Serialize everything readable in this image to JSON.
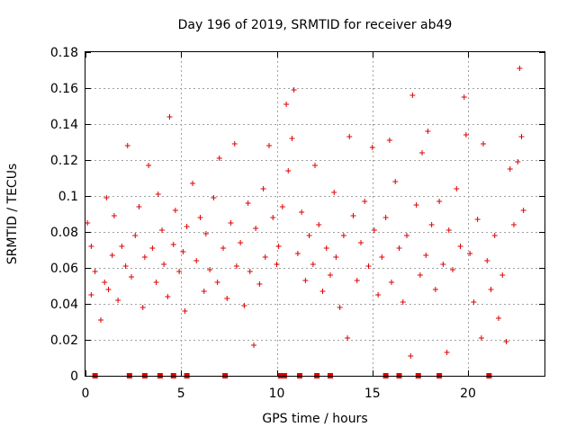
{
  "chart_data": {
    "type": "scatter",
    "title": "Day 196 of 2019, SRMTID for receiver ab49",
    "xlabel": "GPS time / hours",
    "ylabel": "SRMTID / TECUs",
    "xlim": [
      0,
      24
    ],
    "ylim": [
      0,
      0.18
    ],
    "grid": true,
    "marker": "+",
    "color": "#dd0000",
    "x_ticks": [
      0,
      5,
      10,
      15,
      20
    ],
    "x_tick_labels": [
      "0",
      "5",
      "10",
      "15",
      "20"
    ],
    "y_ticks": [
      0,
      0.02,
      0.04,
      0.06,
      0.08,
      0.1,
      0.12,
      0.14,
      0.16,
      0.18
    ],
    "y_tick_labels": [
      "0",
      "0.02",
      "0.04",
      "0.06",
      "0.08",
      "0.1",
      "0.12",
      "0.14",
      "0.16",
      "0.18"
    ],
    "series": [
      {
        "name": "SRMTID",
        "points": [
          [
            0.1,
            0.085
          ],
          [
            0.3,
            0.072
          ],
          [
            0.3,
            0.045
          ],
          [
            0.5,
            0.058
          ],
          [
            0.8,
            0.031
          ],
          [
            1.0,
            0.052
          ],
          [
            1.1,
            0.099
          ],
          [
            1.2,
            0.048
          ],
          [
            1.4,
            0.067
          ],
          [
            1.5,
            0.089
          ],
          [
            1.7,
            0.042
          ],
          [
            1.9,
            0.072
          ],
          [
            2.1,
            0.061
          ],
          [
            2.2,
            0.128
          ],
          [
            2.4,
            0.055
          ],
          [
            2.6,
            0.078
          ],
          [
            2.8,
            0.094
          ],
          [
            3.0,
            0.038
          ],
          [
            3.1,
            0.066
          ],
          [
            3.3,
            0.117
          ],
          [
            3.5,
            0.071
          ],
          [
            3.7,
            0.052
          ],
          [
            3.8,
            0.101
          ],
          [
            4.0,
            0.081
          ],
          [
            4.1,
            0.062
          ],
          [
            4.3,
            0.044
          ],
          [
            4.4,
            0.144
          ],
          [
            4.6,
            0.073
          ],
          [
            4.7,
            0.092
          ],
          [
            4.9,
            0.058
          ],
          [
            5.1,
            0.069
          ],
          [
            5.2,
            0.036
          ],
          [
            5.3,
            0.083
          ],
          [
            5.6,
            0.107
          ],
          [
            5.8,
            0.064
          ],
          [
            6.0,
            0.088
          ],
          [
            6.2,
            0.047
          ],
          [
            6.3,
            0.079
          ],
          [
            6.5,
            0.059
          ],
          [
            6.7,
            0.099
          ],
          [
            6.9,
            0.052
          ],
          [
            7.0,
            0.121
          ],
          [
            7.2,
            0.071
          ],
          [
            7.4,
            0.043
          ],
          [
            7.6,
            0.085
          ],
          [
            7.8,
            0.129
          ],
          [
            7.9,
            0.061
          ],
          [
            8.1,
            0.074
          ],
          [
            8.3,
            0.039
          ],
          [
            8.5,
            0.096
          ],
          [
            8.6,
            0.058
          ],
          [
            8.8,
            0.017
          ],
          [
            8.9,
            0.082
          ],
          [
            9.1,
            0.051
          ],
          [
            9.3,
            0.104
          ],
          [
            9.4,
            0.066
          ],
          [
            9.6,
            0.128
          ],
          [
            9.8,
            0.088
          ],
          [
            10.0,
            0.062
          ],
          [
            10.1,
            0.072
          ],
          [
            10.3,
            0.094
          ],
          [
            10.5,
            0.151
          ],
          [
            10.6,
            0.114
          ],
          [
            10.8,
            0.132
          ],
          [
            10.9,
            0.159
          ],
          [
            11.1,
            0.068
          ],
          [
            11.3,
            0.091
          ],
          [
            11.5,
            0.053
          ],
          [
            11.7,
            0.078
          ],
          [
            11.9,
            0.062
          ],
          [
            12.0,
            0.117
          ],
          [
            12.2,
            0.084
          ],
          [
            12.4,
            0.047
          ],
          [
            12.6,
            0.071
          ],
          [
            12.8,
            0.056
          ],
          [
            13.0,
            0.102
          ],
          [
            13.1,
            0.066
          ],
          [
            13.3,
            0.038
          ],
          [
            13.5,
            0.078
          ],
          [
            13.7,
            0.021
          ],
          [
            13.8,
            0.133
          ],
          [
            14.0,
            0.089
          ],
          [
            14.2,
            0.053
          ],
          [
            14.4,
            0.074
          ],
          [
            14.6,
            0.097
          ],
          [
            14.8,
            0.061
          ],
          [
            15.0,
            0.127
          ],
          [
            15.1,
            0.081
          ],
          [
            15.3,
            0.045
          ],
          [
            15.5,
            0.066
          ],
          [
            15.7,
            0.088
          ],
          [
            15.9,
            0.131
          ],
          [
            16.0,
            0.052
          ],
          [
            16.2,
            0.108
          ],
          [
            16.4,
            0.071
          ],
          [
            16.6,
            0.041
          ],
          [
            16.8,
            0.078
          ],
          [
            17.0,
            0.011
          ],
          [
            17.1,
            0.156
          ],
          [
            17.3,
            0.095
          ],
          [
            17.5,
            0.056
          ],
          [
            17.6,
            0.124
          ],
          [
            17.8,
            0.067
          ],
          [
            17.9,
            0.136
          ],
          [
            18.1,
            0.084
          ],
          [
            18.3,
            0.048
          ],
          [
            18.5,
            0.097
          ],
          [
            18.7,
            0.062
          ],
          [
            18.9,
            0.013
          ],
          [
            19.0,
            0.081
          ],
          [
            19.2,
            0.059
          ],
          [
            19.4,
            0.104
          ],
          [
            19.6,
            0.072
          ],
          [
            19.8,
            0.155
          ],
          [
            19.9,
            0.134
          ],
          [
            20.1,
            0.068
          ],
          [
            20.3,
            0.041
          ],
          [
            20.5,
            0.087
          ],
          [
            20.7,
            0.021
          ],
          [
            20.8,
            0.129
          ],
          [
            21.0,
            0.064
          ],
          [
            21.2,
            0.048
          ],
          [
            21.4,
            0.078
          ],
          [
            21.6,
            0.032
          ],
          [
            21.8,
            0.056
          ],
          [
            22.0,
            0.019
          ],
          [
            22.2,
            0.115
          ],
          [
            22.4,
            0.084
          ],
          [
            22.6,
            0.119
          ],
          [
            22.7,
            0.171
          ],
          [
            22.8,
            0.133
          ],
          [
            22.9,
            0.092
          ]
        ]
      }
    ],
    "zero_markers_x": [
      0.5,
      2.3,
      3.1,
      3.9,
      4.6,
      5.3,
      7.3,
      10.2,
      10.4,
      11.2,
      12.1,
      12.8,
      15.7,
      16.4,
      17.4,
      18.5,
      21.1
    ]
  }
}
